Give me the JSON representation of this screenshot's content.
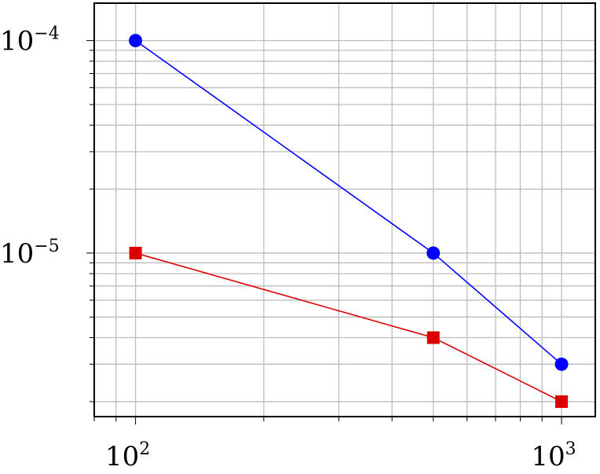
{
  "chart_data": {
    "type": "line",
    "title": "",
    "xlabel": "",
    "ylabel": "",
    "xscale": "log",
    "yscale": "log",
    "xlim": [
      80,
      1200
    ],
    "ylim": [
      1.7e-06,
      0.00015
    ],
    "grid": true,
    "x_ticks": [
      {
        "base": "10",
        "exp": "2",
        "value": 100
      },
      {
        "base": "10",
        "exp": "3",
        "value": 1000
      }
    ],
    "y_ticks": [
      {
        "base": "10",
        "exp": "−4",
        "value": 0.0001
      },
      {
        "base": "10",
        "exp": "−5",
        "value": 1e-05
      }
    ],
    "series": [
      {
        "color": "#0000ff",
        "marker": "circle",
        "x": [
          100,
          500,
          1000
        ],
        "y": [
          0.0001,
          1e-05,
          3e-06
        ]
      },
      {
        "color": "#dd0000",
        "marker": "square",
        "x": [
          100,
          500,
          1000
        ],
        "y": [
          1e-05,
          4e-06,
          2e-06
        ]
      }
    ]
  }
}
